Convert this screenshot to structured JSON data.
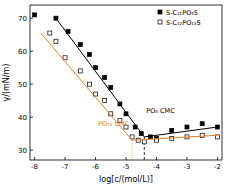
{
  "chart_data": {
    "type": "scatter",
    "x_label": "log[c/(mol/L)]",
    "y_label": "γ/(mN/m)",
    "xlim": [
      -8.15,
      -1.85
    ],
    "ylim": [
      27,
      74
    ],
    "xticks": [
      -8,
      -7,
      -6,
      -5,
      -4,
      -3,
      -2
    ],
    "yticks": [
      30,
      40,
      50,
      60,
      70
    ],
    "legend": "upper right",
    "series": [
      {
        "name": "S-C₁₂PO₅S",
        "color": "#000000",
        "marker": "square",
        "x": [
          -8,
          -7.3,
          -6.9,
          -6.5,
          -6.2,
          -6,
          -5.7,
          -5.5,
          -5.2,
          -5,
          -4.7,
          -4.5,
          -4.2,
          -4,
          -3.5,
          -3,
          -2.5,
          -2
        ],
        "values": [
          71,
          70,
          66,
          62,
          59,
          55,
          52,
          49,
          44,
          41,
          37,
          35,
          34,
          33.5,
          36,
          37,
          38,
          37
        ]
      },
      {
        "name": "S-C₁₂PO₁₃S",
        "color": "#000000",
        "marker": "open-square",
        "x": [
          -7.5,
          -7.3,
          -7,
          -6.5,
          -6.2,
          -6,
          -5.7,
          -5.5,
          -5.2,
          -5,
          -4.8,
          -4.6,
          -4.4,
          -4,
          -3.5,
          -3,
          -2.5,
          -2
        ],
        "values": [
          65.5,
          63,
          58,
          54,
          50,
          47,
          45,
          41,
          39,
          37,
          34,
          33,
          32.5,
          33,
          33.5,
          34,
          34.5,
          34
        ]
      },
      {
        "type": "line",
        "color": "#000000",
        "line_style": "solid",
        "x": [
          -7.3,
          -4.4,
          -2
        ],
        "values": [
          70,
          34,
          37
        ]
      },
      {
        "type": "line",
        "color": "#f07d1a",
        "line_style": "solid",
        "x": [
          -7.8,
          -4.8,
          -2
        ],
        "values": [
          65.5,
          33,
          34.5
        ]
      }
    ],
    "annotations": [
      {
        "text": "PO₅ CMC",
        "x": -4.4,
        "y": 34,
        "color": "#000000",
        "line_style": "dashed"
      },
      {
        "text": "PO₁₃ CMC",
        "x": -4.8,
        "y": 33,
        "color": "#f07d1a",
        "line_style": "dotted"
      }
    ]
  }
}
